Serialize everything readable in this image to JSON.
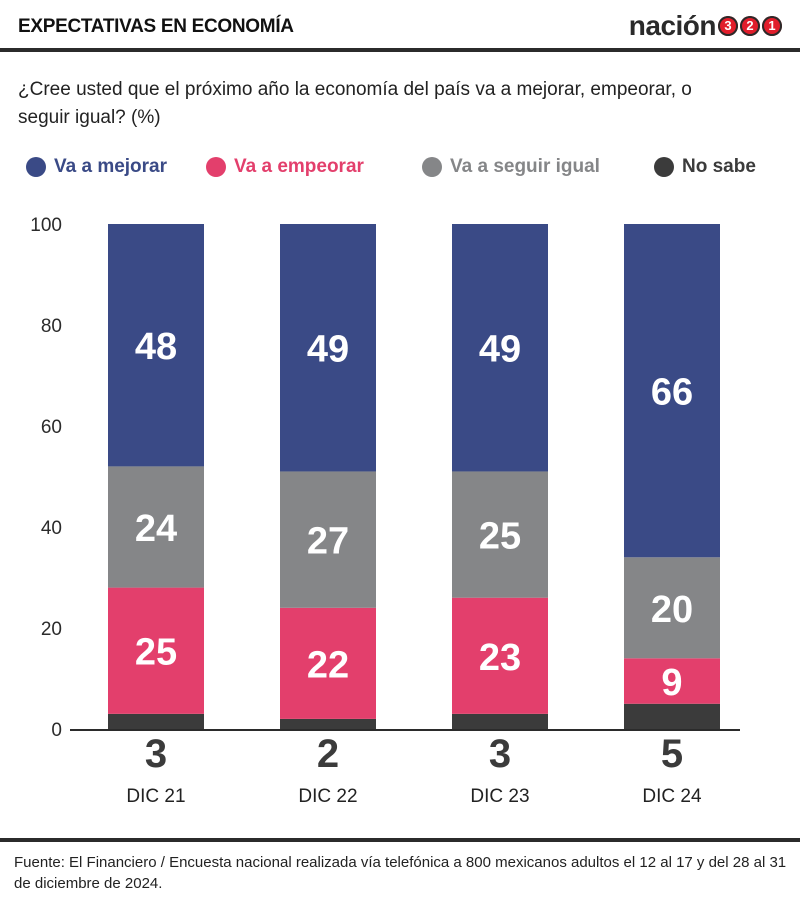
{
  "header": {
    "kicker": "EXPECTATIVAS EN ECONOMÍA",
    "logo_text": "nación",
    "logo_badges": [
      "3",
      "2",
      "1"
    ]
  },
  "question": "¿Cree usted que el próximo año la economía del país va a mejorar, empeorar, o seguir igual? (%)",
  "colors": {
    "mejorar": "#3a4a86",
    "empeorar": "#e33f6c",
    "igual": "#858688",
    "no_sabe": "#3b3b3b",
    "axis": "#2b2b2b"
  },
  "chart_data": {
    "type": "bar",
    "stacked": true,
    "categories": [
      "DIC 21",
      "DIC 22",
      "DIC 23",
      "DIC 24"
    ],
    "series": [
      {
        "name": "No sabe",
        "values": [
          3,
          2,
          3,
          5
        ],
        "color": "#3b3b3b"
      },
      {
        "name": "Va a empeorar",
        "values": [
          25,
          22,
          23,
          9
        ],
        "color": "#e33f6c"
      },
      {
        "name": "Va a seguir igual",
        "values": [
          24,
          27,
          25,
          20
        ],
        "color": "#858688"
      },
      {
        "name": "Va a mejorar",
        "values": [
          48,
          49,
          49,
          66
        ],
        "color": "#3a4a86"
      }
    ],
    "yticks": [
      "0",
      "20",
      "40",
      "60",
      "80",
      "100"
    ],
    "ylim": [
      0,
      100
    ],
    "legend_order": [
      "Va a mejorar",
      "Va a empeorar",
      "Va a seguir igual",
      "No sabe"
    ],
    "legend_placement": "top",
    "grid": false
  },
  "source": "Fuente: El Financiero / Encuesta nacional realizada vía telefónica a 800 mexicanos adultos el 12 al 17 y del 28 al 31 de diciembre de 2024."
}
